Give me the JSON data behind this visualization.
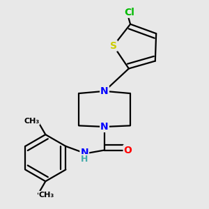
{
  "background_color": "#e8e8e8",
  "atom_colors": {
    "N": "#0000ff",
    "O": "#ff0000",
    "S": "#cccc00",
    "Cl": "#00bb00",
    "H": "#44aaaa"
  },
  "bond_color": "#000000",
  "bond_width": 1.6,
  "font_size_atom": 10,
  "font_size_small": 9,
  "font_size_methyl": 8
}
